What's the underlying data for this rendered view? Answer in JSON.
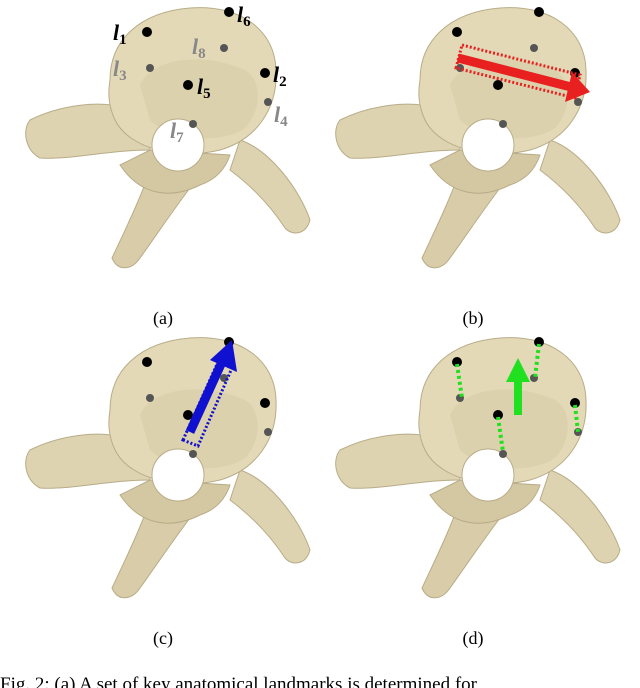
{
  "figure": {
    "panel_labels": [
      "(a)",
      "(b)",
      "(c)",
      "(d)"
    ],
    "landmarks": [
      {
        "symbol": "l",
        "subscript": "1"
      },
      {
        "symbol": "l",
        "subscript": "2"
      },
      {
        "symbol": "l",
        "subscript": "3"
      },
      {
        "symbol": "l",
        "subscript": "4"
      },
      {
        "symbol": "l",
        "subscript": "5"
      },
      {
        "symbol": "l",
        "subscript": "6"
      },
      {
        "symbol": "l",
        "subscript": "7"
      },
      {
        "symbol": "l",
        "subscript": "8"
      }
    ],
    "caption": "Fig. 2: (a) A set of key anatomical landmarks is determined for"
  }
}
